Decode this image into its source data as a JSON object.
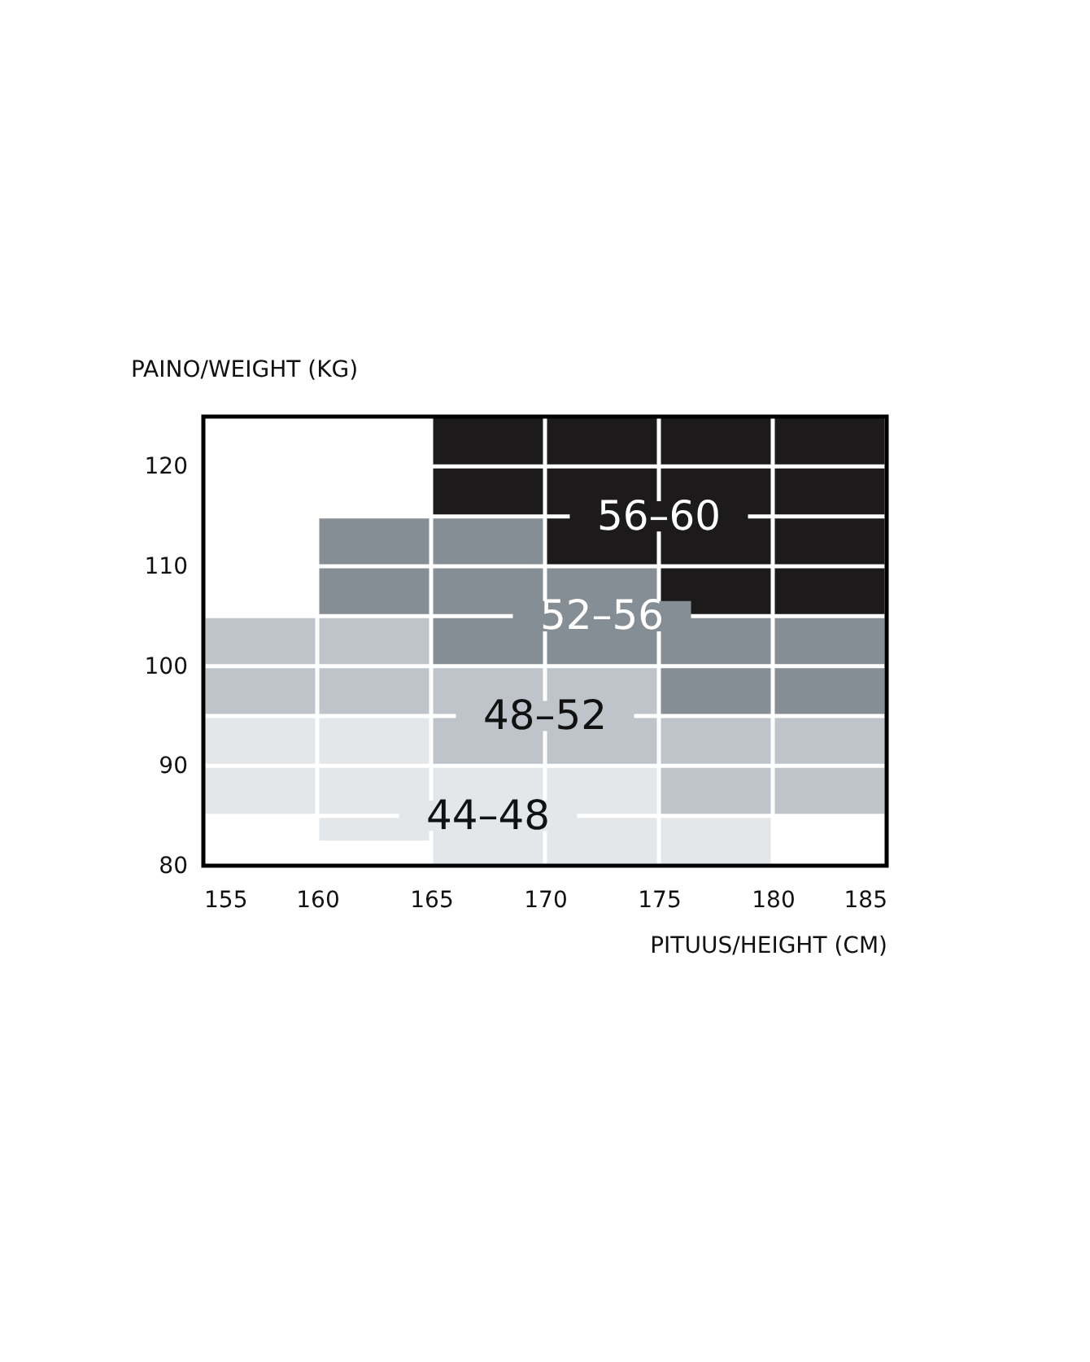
{
  "chart_data": {
    "type": "bar",
    "xlabel": "PITUUS/HEIGHT (CM)",
    "ylabel": "PAINO/WEIGHT (KG)",
    "x": [
      157.5,
      162.5,
      167.5,
      172.5,
      177.5,
      182.5
    ],
    "xlim": [
      155,
      185
    ],
    "xticks": [
      155,
      160,
      165,
      170,
      175,
      180,
      185
    ],
    "ylim": [
      80,
      125
    ],
    "yticks": [
      80,
      {
        "value": 85,
        "label": null
      },
      90,
      {
        "value": 95,
        "label": null
      },
      100,
      {
        "value": 105,
        "label": null
      },
      110,
      {
        "value": 115,
        "label": null
      },
      120
    ],
    "grid": true,
    "series": [
      {
        "name": "44–48",
        "color": "#e4e7ea",
        "base": [
          85,
          82.5,
          80,
          80,
          80,
          null
        ],
        "values": [
          10,
          12.5,
          10,
          10,
          5,
          null
        ]
      },
      {
        "name": "48–52",
        "color": "#bec4c9",
        "base": [
          95,
          95,
          90,
          90,
          85,
          85
        ],
        "values": [
          10,
          10,
          10,
          10,
          10,
          10
        ]
      },
      {
        "name": "52–56",
        "color": "#858d95",
        "base": [
          null,
          105,
          100,
          100,
          95,
          95
        ],
        "values": [
          null,
          10,
          15,
          10,
          10,
          10
        ]
      },
      {
        "name": "56–60",
        "color": "#1c1a1a",
        "base": [
          null,
          null,
          115,
          110,
          105,
          105
        ],
        "values": [
          null,
          null,
          10,
          15,
          20,
          20
        ]
      }
    ]
  }
}
